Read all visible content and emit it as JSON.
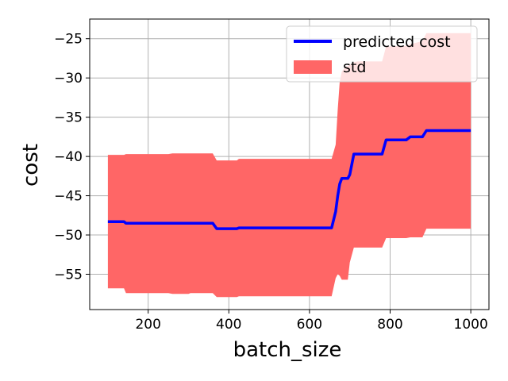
{
  "chart_data": {
    "type": "line",
    "xlabel": "batch_size",
    "ylabel": "cost",
    "xlim": [
      55,
      1045
    ],
    "ylim": [
      -59.5,
      -22.5
    ],
    "xticks": [
      200,
      400,
      600,
      800,
      1000
    ],
    "xtick_labels": [
      "200",
      "400",
      "600",
      "800",
      "1000"
    ],
    "yticks": [
      -55,
      -50,
      -45,
      -40,
      -35,
      -30,
      -25
    ],
    "ytick_labels": [
      "−55",
      "−50",
      "−45",
      "−40",
      "−35",
      "−30",
      "−25"
    ],
    "grid": true,
    "legend_position": "top-right",
    "colors": {
      "line": "#0000ff",
      "band": "#ff6666",
      "grid": "#b0b0b0"
    },
    "series": [
      {
        "name": "predicted cost",
        "kind": "line",
        "x": [
          100,
          140,
          145,
          250,
          260,
          300,
          305,
          360,
          370,
          420,
          425,
          655,
          665,
          670,
          675,
          680,
          690,
          695,
          700,
          710,
          720,
          780,
          790,
          840,
          850,
          880,
          890,
          1000
        ],
        "y": [
          -48.3,
          -48.3,
          -48.5,
          -48.5,
          -48.5,
          -48.5,
          -48.5,
          -48.5,
          -49.2,
          -49.2,
          -49.1,
          -49.1,
          -47.0,
          -45.0,
          -43.5,
          -42.8,
          -42.8,
          -42.8,
          -42.3,
          -39.7,
          -39.7,
          -39.7,
          -37.9,
          -37.9,
          -37.5,
          -37.5,
          -36.7,
          -36.7
        ]
      },
      {
        "name": "std",
        "kind": "band",
        "x": [
          100,
          140,
          145,
          250,
          260,
          300,
          305,
          360,
          370,
          420,
          425,
          655,
          665,
          670,
          675,
          680,
          690,
          695,
          700,
          710,
          720,
          780,
          790,
          840,
          850,
          880,
          890,
          1000
        ],
        "upper": [
          -39.8,
          -39.8,
          -39.7,
          -39.7,
          -39.6,
          -39.6,
          -39.6,
          -39.6,
          -40.5,
          -40.5,
          -40.3,
          -40.3,
          -38.5,
          -34.0,
          -30.5,
          -29.2,
          -28.5,
          -28.5,
          -28.3,
          -28.0,
          -27.9,
          -27.9,
          -26.0,
          -25.9,
          -25.7,
          -25.3,
          -24.3,
          -24.3
        ],
        "lower": [
          -56.8,
          -56.8,
          -57.4,
          -57.4,
          -57.5,
          -57.5,
          -57.4,
          -57.4,
          -57.9,
          -57.9,
          -57.8,
          -57.8,
          -55.5,
          -55.0,
          -55.2,
          -55.7,
          -55.7,
          -55.7,
          -53.5,
          -51.6,
          -51.6,
          -51.6,
          -50.4,
          -50.4,
          -50.3,
          -50.3,
          -49.2,
          -49.2
        ]
      }
    ]
  }
}
